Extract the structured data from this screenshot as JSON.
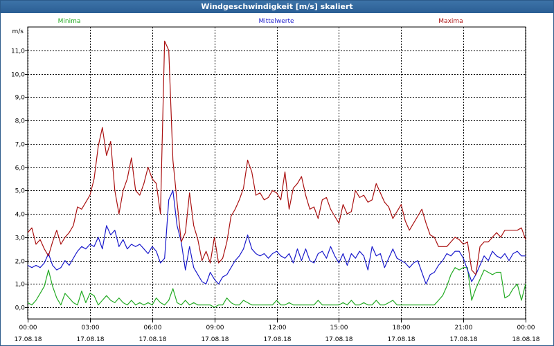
{
  "title": "Windgeschwindigkeit [m/s] skaliert",
  "chart_data": {
    "type": "line",
    "title": "Windgeschwindigkeit [m/s] skaliert",
    "ylabel": "m/s",
    "ylim": [
      -0.5,
      12.0
    ],
    "y_ticks": [
      "0,0",
      "1,0",
      "2,0",
      "3,0",
      "4,0",
      "5,0",
      "6,0",
      "7,0",
      "8,0",
      "9,0",
      "10,0",
      "11,0"
    ],
    "x_ticks": [
      {
        "time": "00:00",
        "date": "17.08.18"
      },
      {
        "time": "03:00",
        "date": "17.08.18"
      },
      {
        "time": "06:00",
        "date": "17.08.18"
      },
      {
        "time": "09:00",
        "date": "17.08.18"
      },
      {
        "time": "12:00",
        "date": "17.08.18"
      },
      {
        "time": "15:00",
        "date": "17.08.18"
      },
      {
        "time": "18:00",
        "date": "17.08.18"
      },
      {
        "time": "21:00",
        "date": "17.08.18"
      },
      {
        "time": "00:00",
        "date": "18.08.18"
      }
    ],
    "xlim_hours": [
      0,
      24
    ],
    "grid": true,
    "legend_position": "top",
    "x_hours": [
      0,
      0.2,
      0.4,
      0.6,
      0.8,
      1,
      1.2,
      1.4,
      1.6,
      1.8,
      2,
      2.2,
      2.4,
      2.6,
      2.8,
      3,
      3.2,
      3.4,
      3.6,
      3.8,
      4,
      4.2,
      4.4,
      4.6,
      4.8,
      5,
      5.2,
      5.4,
      5.6,
      5.8,
      6,
      6.2,
      6.4,
      6.6,
      6.8,
      7,
      7.2,
      7.4,
      7.6,
      7.8,
      8,
      8.2,
      8.4,
      8.6,
      8.8,
      9,
      9.2,
      9.4,
      9.6,
      9.8,
      10,
      10.2,
      10.4,
      10.6,
      10.8,
      11,
      11.2,
      11.4,
      11.6,
      11.8,
      12,
      12.2,
      12.4,
      12.6,
      12.8,
      13,
      13.2,
      13.4,
      13.6,
      13.8,
      14,
      14.2,
      14.4,
      14.6,
      14.8,
      15,
      15.2,
      15.4,
      15.6,
      15.8,
      16,
      16.2,
      16.4,
      16.6,
      16.8,
      17,
      17.2,
      17.4,
      17.6,
      17.8,
      18,
      18.2,
      18.4,
      18.6,
      18.8,
      19,
      19.2,
      19.4,
      19.6,
      19.8,
      20,
      20.2,
      20.4,
      20.6,
      20.8,
      21,
      21.2,
      21.4,
      21.6,
      21.8,
      22,
      22.2,
      22.4,
      22.6,
      22.8,
      23,
      23.2,
      23.4,
      23.6,
      23.8,
      24
    ],
    "series": [
      {
        "name": "Minima",
        "color": "#22aa22",
        "values": [
          0.2,
          0.1,
          0.3,
          0.6,
          0.9,
          1.6,
          0.9,
          0.4,
          0.1,
          0.6,
          0.4,
          0.2,
          0.1,
          0.7,
          0.2,
          0.6,
          0.5,
          0.1,
          0.3,
          0.5,
          0.3,
          0.2,
          0.4,
          0.2,
          0.1,
          0.3,
          0.1,
          0.2,
          0.1,
          0.2,
          0.1,
          0.4,
          0.2,
          0.1,
          0.3,
          0.8,
          0.2,
          0.1,
          0.3,
          0.1,
          0.2,
          0.1,
          0.1,
          0.1,
          0.1,
          0.0,
          0.1,
          0.1,
          0.4,
          0.2,
          0.1,
          0.1,
          0.3,
          0.2,
          0.1,
          0.1,
          0.1,
          0.1,
          0.1,
          0.1,
          0.3,
          0.1,
          0.1,
          0.2,
          0.1,
          0.1,
          0.1,
          0.1,
          0.1,
          0.1,
          0.3,
          0.1,
          0.1,
          0.1,
          0.1,
          0.1,
          0.2,
          0.1,
          0.3,
          0.1,
          0.1,
          0.2,
          0.1,
          0.1,
          0.3,
          0.1,
          0.1,
          0.2,
          0.3,
          0.1,
          0.1,
          0.1,
          0.1,
          0.1,
          0.1,
          0.1,
          0.1,
          0.1,
          0.1,
          0.3,
          0.5,
          0.9,
          1.4,
          1.7,
          1.6,
          1.7,
          1.7,
          0.3,
          0.8,
          1.2,
          1.6,
          1.5,
          1.4,
          1.5,
          1.5,
          0.4,
          0.5,
          0.8,
          1.0,
          0.3,
          1.0
        ]
      },
      {
        "name": "Mittelwerte",
        "color": "#1a1acc",
        "values": [
          1.8,
          1.7,
          1.8,
          1.7,
          1.9,
          2.3,
          1.8,
          1.6,
          1.7,
          2.0,
          1.8,
          2.1,
          2.4,
          2.6,
          2.5,
          2.7,
          2.6,
          3.0,
          2.5,
          3.5,
          3.1,
          3.3,
          2.6,
          2.9,
          2.5,
          2.7,
          2.6,
          2.7,
          2.5,
          2.3,
          2.6,
          2.4,
          1.9,
          2.1,
          4.6,
          5.0,
          3.5,
          2.8,
          1.6,
          2.6,
          1.7,
          1.4,
          1.1,
          1.0,
          1.5,
          1.2,
          1.0,
          1.3,
          1.4,
          1.7,
          2.0,
          2.2,
          2.5,
          3.1,
          2.5,
          2.3,
          2.2,
          2.3,
          2.1,
          2.3,
          2.4,
          2.2,
          2.1,
          2.3,
          1.9,
          2.5,
          2.0,
          2.5,
          2.0,
          1.9,
          2.3,
          2.4,
          2.1,
          2.6,
          2.2,
          1.9,
          2.3,
          1.8,
          2.3,
          2.1,
          2.4,
          2.2,
          1.6,
          2.6,
          2.2,
          2.3,
          1.7,
          2.1,
          2.5,
          2.1,
          2.0,
          1.9,
          1.7,
          1.9,
          2.0,
          1.5,
          1.0,
          1.4,
          1.5,
          1.8,
          2.0,
          2.3,
          2.2,
          2.4,
          2.4,
          2.1,
          1.6,
          1.1,
          1.4,
          1.8,
          2.2,
          2.0,
          2.4,
          2.2,
          2.1,
          2.3,
          2.0,
          2.3,
          2.4,
          2.2,
          2.2
        ]
      },
      {
        "name": "Maxima",
        "color": "#aa1111",
        "values": [
          3.2,
          3.4,
          2.7,
          2.9,
          2.5,
          2.2,
          2.8,
          3.3,
          2.7,
          3.0,
          3.2,
          3.5,
          4.3,
          4.2,
          4.5,
          4.8,
          5.5,
          6.9,
          7.7,
          6.5,
          7.1,
          5.0,
          4.0,
          5.0,
          5.5,
          6.4,
          5.0,
          4.8,
          5.3,
          6.0,
          5.5,
          5.3,
          4.0,
          11.4,
          11.0,
          6.3,
          4.5,
          2.8,
          3.2,
          4.9,
          3.5,
          2.9,
          2.0,
          2.4,
          1.9,
          3.0,
          1.9,
          2.1,
          2.8,
          3.9,
          4.2,
          4.6,
          5.1,
          6.3,
          5.8,
          4.8,
          4.9,
          4.6,
          4.7,
          5.0,
          4.9,
          4.6,
          5.8,
          4.2,
          5.1,
          5.3,
          5.6,
          4.8,
          4.2,
          4.3,
          3.8,
          4.6,
          4.7,
          4.2,
          3.9,
          3.6,
          4.4,
          4.0,
          4.1,
          5.0,
          4.7,
          4.8,
          4.5,
          4.6,
          5.3,
          4.9,
          4.5,
          4.3,
          3.8,
          4.1,
          4.4,
          3.7,
          3.3,
          3.6,
          3.9,
          4.2,
          3.6,
          3.1,
          3.0,
          2.6,
          2.6,
          2.6,
          2.8,
          3.0,
          2.9,
          2.7,
          2.8,
          1.6,
          1.4,
          2.6,
          2.8,
          2.8,
          3.0,
          3.2,
          3.0,
          3.3,
          3.3,
          3.3,
          3.3,
          3.4,
          2.9
        ]
      }
    ]
  }
}
